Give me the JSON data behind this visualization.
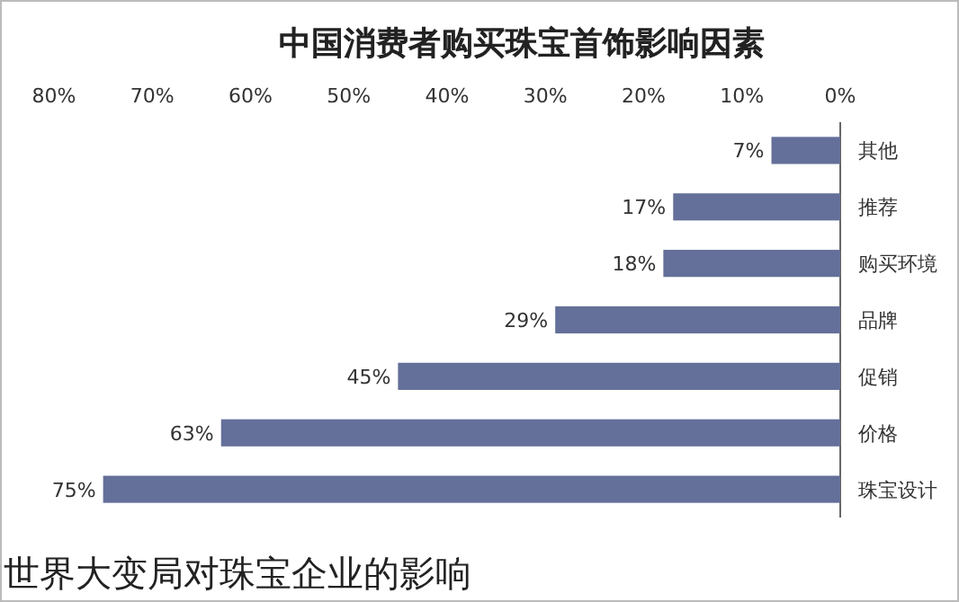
{
  "chart_data": {
    "type": "bar",
    "orientation": "horizontal",
    "title": "中国消费者购买珠宝首饰影响因素",
    "categories": [
      "其他",
      "推荐",
      "购买环境",
      "品牌",
      "促销",
      "价格",
      "珠宝设计"
    ],
    "values": [
      7,
      17,
      18,
      29,
      45,
      63,
      75
    ],
    "value_labels": [
      "7%",
      "17%",
      "18%",
      "29%",
      "45%",
      "63%",
      "75%"
    ],
    "color": "#647099",
    "xlim": [
      80,
      0
    ],
    "xticks": [
      {
        "value": 0,
        "label": "0%"
      },
      {
        "value": 10,
        "label": "10%"
      },
      {
        "value": 20,
        "label": "20%"
      },
      {
        "value": 30,
        "label": "30%"
      },
      {
        "value": 40,
        "label": "40%"
      },
      {
        "value": 50,
        "label": "50%"
      },
      {
        "value": 60,
        "label": "60%"
      },
      {
        "value": 70,
        "label": "70%"
      },
      {
        "value": 80,
        "label": "80%"
      }
    ],
    "annotations": [
      "世界大变局对珠宝企业的影响"
    ]
  }
}
